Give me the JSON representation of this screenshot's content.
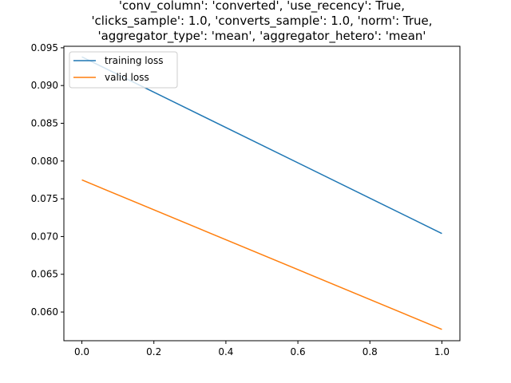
{
  "chart_data": {
    "type": "line",
    "title_lines": [
      "'conv_column': 'converted', 'use_recency': True,",
      "'clicks_sample': 1.0, 'converts_sample': 1.0, 'norm': True,",
      "'aggregator_type': 'mean', 'aggregator_hetero': 'mean'"
    ],
    "xlabel": "",
    "ylabel": "",
    "xlim": [
      -0.05,
      1.05
    ],
    "ylim": [
      0.0562,
      0.0952
    ],
    "xticks": [
      0.0,
      0.2,
      0.4,
      0.6,
      0.8,
      1.0
    ],
    "xtick_labels": [
      "0.0",
      "0.2",
      "0.4",
      "0.6",
      "0.8",
      "1.0"
    ],
    "yticks": [
      0.06,
      0.065,
      0.07,
      0.075,
      0.08,
      0.085,
      0.09,
      0.095
    ],
    "ytick_labels": [
      "0.060",
      "0.065",
      "0.070",
      "0.075",
      "0.080",
      "0.085",
      "0.090",
      "0.095"
    ],
    "grid": false,
    "legend_position": "upper-left",
    "series": [
      {
        "name": "training loss",
        "color": "#1f77b4",
        "x": [
          0,
          1
        ],
        "y": [
          0.0938,
          0.0704
        ]
      },
      {
        "name": "valid loss",
        "color": "#ff7f0e",
        "x": [
          0,
          1
        ],
        "y": [
          0.0775,
          0.0577
        ]
      }
    ]
  }
}
